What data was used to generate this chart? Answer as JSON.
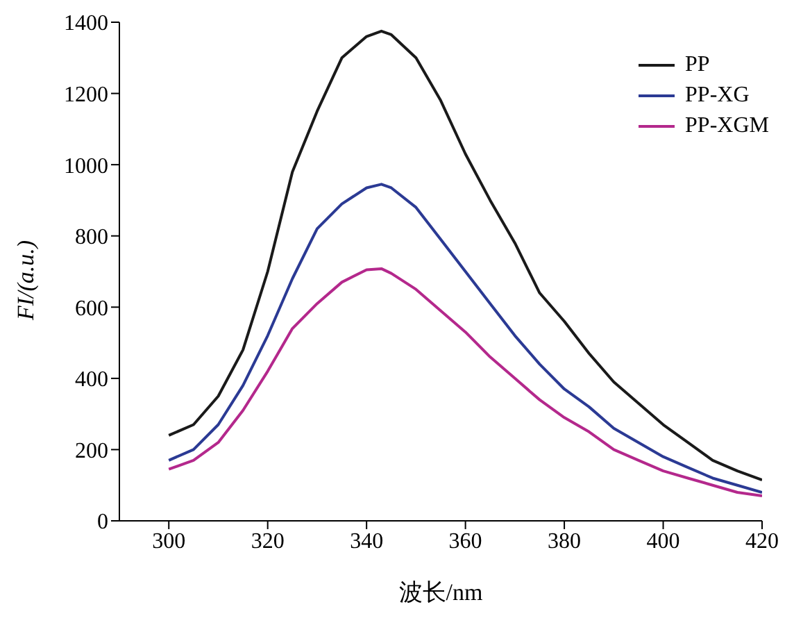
{
  "chart_data": {
    "type": "line",
    "xlabel": "波长/nm",
    "ylabel": "FI/(a.u.)",
    "x": [
      300,
      305,
      310,
      315,
      320,
      325,
      330,
      335,
      340,
      343,
      345,
      350,
      355,
      360,
      365,
      370,
      375,
      380,
      385,
      390,
      395,
      400,
      405,
      410,
      415,
      420
    ],
    "series": [
      {
        "name": "PP",
        "color": "#1a1a1a",
        "values": [
          240,
          270,
          350,
          480,
          700,
          980,
          1150,
          1300,
          1360,
          1375,
          1365,
          1300,
          1180,
          1030,
          900,
          780,
          640,
          560,
          470,
          390,
          330,
          270,
          220,
          170,
          140,
          115
        ]
      },
      {
        "name": "PP-XG",
        "color": "#2b3a94",
        "values": [
          170,
          200,
          270,
          380,
          520,
          680,
          820,
          890,
          935,
          945,
          935,
          880,
          790,
          700,
          610,
          520,
          440,
          370,
          320,
          260,
          220,
          180,
          150,
          120,
          100,
          80
        ]
      },
      {
        "name": "PP-XGM",
        "color": "#b4288c",
        "values": [
          145,
          170,
          220,
          310,
          420,
          540,
          610,
          670,
          705,
          708,
          695,
          650,
          590,
          530,
          460,
          400,
          340,
          290,
          250,
          200,
          170,
          140,
          120,
          100,
          80,
          70
        ]
      }
    ],
    "xlim": [
      290,
      420
    ],
    "xticks": [
      300,
      320,
      340,
      360,
      380,
      400,
      420
    ],
    "ylim": [
      0,
      1400
    ],
    "yticks": [
      0,
      200,
      400,
      600,
      800,
      1000,
      1200,
      1400
    ],
    "grid": false,
    "legend": "top right",
    "marker": "none",
    "line_style": "solid"
  }
}
